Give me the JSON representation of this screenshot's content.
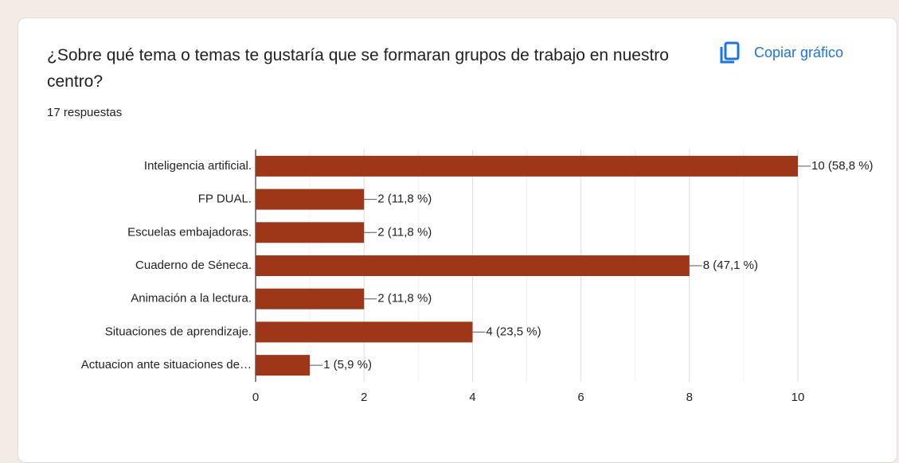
{
  "chart_data": {
    "type": "bar",
    "orientation": "horizontal",
    "title": "¿Sobre qué tema o temas te gustaría que se formaran grupos de trabajo en nuestro centro?",
    "subtitle": "17 respuestas",
    "copy_button": "Copiar gráfico",
    "categories": [
      "Inteligencia artificial.",
      "FP DUAL.",
      "Escuelas embajadoras.",
      "Cuaderno de Séneca.",
      "Animación a la lectura.",
      "Situaciones de aprendizaje.",
      "Actuacion ante situaciones de…"
    ],
    "values": [
      10,
      2,
      2,
      8,
      2,
      4,
      1
    ],
    "value_labels": [
      "10 (58,8 %)",
      "2 (11,8 %)",
      "2 (11,8 %)",
      "8 (47,1 %)",
      "2 (11,8 %)",
      "4 (23,5 %)",
      "1 (5,9 %)"
    ],
    "color": "#9e3618",
    "xlim": [
      0,
      10
    ],
    "xticks": [
      0,
      2,
      4,
      6,
      8,
      10
    ],
    "minor_gridlines": [
      1,
      3,
      5,
      7,
      9
    ],
    "grid": true
  }
}
